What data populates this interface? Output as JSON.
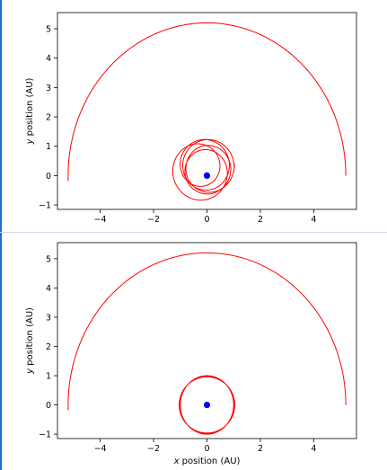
{
  "chart_data": [
    {
      "type": "line",
      "title": "",
      "xlabel": "",
      "ylabel": "y position (AU)",
      "xlim": [
        -5.6,
        5.6
      ],
      "ylim": [
        -1.15,
        5.55
      ],
      "xticks": [
        -4,
        -2,
        0,
        2,
        4
      ],
      "yticks": [
        -1,
        0,
        1,
        2,
        3,
        4,
        5
      ],
      "grid": false,
      "series": [
        {
          "kind": "arc",
          "color": "#ff0000",
          "semi_axis_x": 5.2,
          "semi_axis_y": 5.2,
          "start_deg": 0,
          "end_deg": 182
        },
        {
          "kind": "precessing-loops",
          "color": "#ff0000",
          "radius": 0.95,
          "loops": 5,
          "center_wobble": 0.2
        }
      ],
      "points": [
        {
          "x": 0,
          "y": 0,
          "color": "#0000ff"
        }
      ]
    },
    {
      "type": "line",
      "title": "",
      "xlabel": "x position (AU)",
      "ylabel": "y position (AU)",
      "xlim": [
        -5.6,
        5.6
      ],
      "ylim": [
        -1.15,
        5.55
      ],
      "xticks": [
        -4,
        -2,
        0,
        2,
        4
      ],
      "yticks": [
        -1,
        0,
        1,
        2,
        3,
        4,
        5
      ],
      "grid": false,
      "series": [
        {
          "kind": "arc",
          "color": "#ff0000",
          "semi_axis_x": 5.2,
          "semi_axis_y": 5.2,
          "start_deg": 0,
          "end_deg": 182
        },
        {
          "kind": "ellipse",
          "color": "#ff0000",
          "semi_axis_x": 1.0,
          "semi_axis_y": 1.0
        }
      ],
      "points": [
        {
          "x": 0,
          "y": 0,
          "color": "#0000ff"
        }
      ]
    }
  ]
}
